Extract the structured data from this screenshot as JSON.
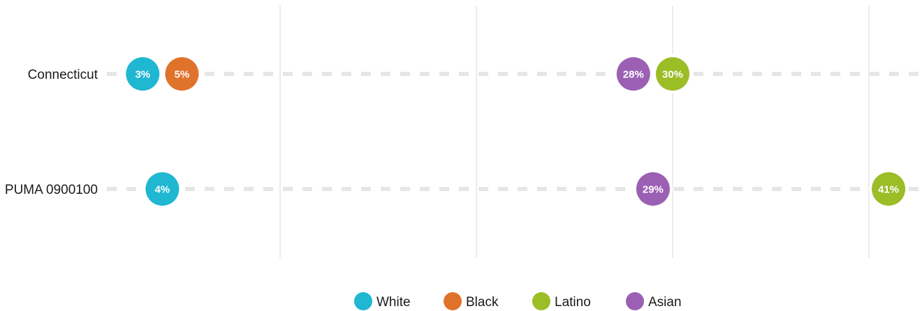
{
  "chart_data": {
    "type": "scatter",
    "categories": [
      "Connecticut",
      "PUMA 0900100"
    ],
    "series": [
      {
        "name": "White",
        "color": "#1fb7d1",
        "values": [
          3,
          4
        ]
      },
      {
        "name": "Black",
        "color": "#e0732c",
        "values": [
          5,
          null
        ]
      },
      {
        "name": "Latino",
        "color": "#9bbd26",
        "values": [
          30,
          41
        ]
      },
      {
        "name": "Asian",
        "color": "#9b60b4",
        "values": [
          28,
          29
        ]
      }
    ],
    "value_labels": [
      [
        "3%",
        "4%"
      ],
      [
        "5%",
        null
      ],
      [
        "30%",
        "41%"
      ],
      [
        "28%",
        "29%"
      ]
    ],
    "xlim": [
      -2,
      42
    ],
    "gridlines_x": [
      10,
      20,
      30,
      40
    ],
    "legend": {
      "placement": "bottom",
      "entries": [
        "White",
        "Black",
        "Latino",
        "Asian"
      ]
    },
    "grid": true
  }
}
